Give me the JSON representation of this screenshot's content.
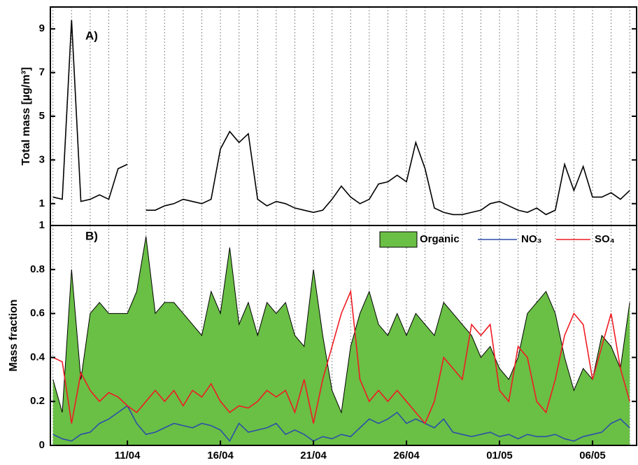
{
  "chart_data": [
    {
      "type": "line",
      "annotation": "A)",
      "ylabel": "Total mass [µg/m³]",
      "xlim": [
        6.86,
        38.37
      ],
      "ylim": [
        0,
        10
      ],
      "yticks": [
        1,
        3,
        5,
        7,
        9
      ],
      "xminor": [
        7,
        8,
        9,
        10,
        11,
        12,
        13,
        14,
        15,
        16,
        17,
        18,
        19,
        20,
        21,
        22,
        23,
        24,
        25,
        26,
        27,
        28,
        29,
        30,
        31,
        32,
        33,
        34,
        35,
        36,
        37,
        38
      ],
      "x": [
        7,
        7.5,
        8,
        8.5,
        9,
        9.5,
        10,
        10.5,
        11,
        11.5,
        12,
        12.5,
        13,
        13.5,
        14,
        14.5,
        15,
        15.5,
        16,
        16.5,
        17,
        17.5,
        18,
        18.5,
        19,
        19.5,
        20,
        20.5,
        21,
        21.5,
        22,
        22.5,
        23,
        23.5,
        24,
        24.5,
        25,
        25.5,
        26,
        26.5,
        27,
        27.5,
        28,
        28.5,
        29,
        29.5,
        30,
        30.5,
        31,
        31.5,
        32,
        32.5,
        33,
        33.5,
        34,
        34.5,
        35,
        35.5,
        36,
        36.5,
        37,
        37.5,
        38
      ],
      "series": [
        {
          "color": "#000000",
          "values": [
            1.3,
            1.2,
            9.4,
            1.1,
            1.2,
            1.4,
            1.2,
            2.6,
            2.8,
            null,
            0.7,
            0.7,
            0.9,
            1.0,
            1.2,
            1.1,
            1.0,
            1.2,
            3.5,
            4.3,
            3.8,
            4.2,
            1.2,
            0.9,
            1.1,
            1.0,
            0.8,
            0.7,
            0.6,
            0.7,
            1.2,
            1.8,
            1.3,
            1.0,
            1.2,
            1.9,
            2.0,
            2.3,
            2.0,
            3.8,
            2.6,
            0.8,
            0.6,
            0.5,
            0.5,
            0.6,
            0.7,
            1.0,
            1.1,
            0.9,
            0.7,
            0.6,
            0.8,
            0.5,
            0.7,
            2.8,
            1.6,
            2.7,
            1.3,
            1.3,
            1.5,
            1.2,
            1.6
          ]
        }
      ]
    },
    {
      "type": "line",
      "annotation": "B)",
      "ylabel": "Mass fraction",
      "xlim": [
        6.86,
        38.37
      ],
      "ylim": [
        0,
        1
      ],
      "yticks": [
        0,
        0.2,
        0.4,
        0.6,
        0.8,
        1
      ],
      "xminor": [
        7,
        8,
        9,
        10,
        11,
        12,
        13,
        14,
        15,
        16,
        17,
        18,
        19,
        20,
        21,
        22,
        23,
        24,
        25,
        26,
        27,
        28,
        29,
        30,
        31,
        32,
        33,
        34,
        35,
        36,
        37,
        38
      ],
      "xticks": [
        {
          "value": 11,
          "label": "11/04"
        },
        {
          "value": 16,
          "label": "16/04"
        },
        {
          "value": 21,
          "label": "21/04"
        },
        {
          "value": 26,
          "label": "26/04"
        },
        {
          "value": 31,
          "label": "01/05"
        },
        {
          "value": 36,
          "label": "06/05"
        }
      ],
      "x": [
        7,
        7.5,
        8,
        8.5,
        9,
        9.5,
        10,
        10.5,
        11,
        11.5,
        12,
        12.5,
        13,
        13.5,
        14,
        14.5,
        15,
        15.5,
        16,
        16.5,
        17,
        17.5,
        18,
        18.5,
        19,
        19.5,
        20,
        20.5,
        21,
        21.5,
        22,
        22.5,
        23,
        23.5,
        24,
        24.5,
        25,
        25.5,
        26,
        26.5,
        27,
        27.5,
        28,
        28.5,
        29,
        29.5,
        30,
        30.5,
        31,
        31.5,
        32,
        32.5,
        33,
        33.5,
        34,
        34.5,
        35,
        35.5,
        36,
        36.5,
        37,
        37.5,
        38
      ],
      "series": [
        {
          "name": "Organic",
          "color": "#6abf45",
          "style": "area",
          "values": [
            0.3,
            0.15,
            0.8,
            0.3,
            0.6,
            0.65,
            0.6,
            0.6,
            0.6,
            0.7,
            0.95,
            0.6,
            0.65,
            0.65,
            0.6,
            0.55,
            0.5,
            0.7,
            0.6,
            0.9,
            0.55,
            0.65,
            0.5,
            0.65,
            0.6,
            0.65,
            0.5,
            0.45,
            0.8,
            0.5,
            0.25,
            0.15,
            0.45,
            0.6,
            0.7,
            0.55,
            0.5,
            0.6,
            0.5,
            0.6,
            0.55,
            0.5,
            0.65,
            0.6,
            0.55,
            0.5,
            0.4,
            0.45,
            0.35,
            0.3,
            0.4,
            0.6,
            0.65,
            0.7,
            0.6,
            0.4,
            0.25,
            0.35,
            0.3,
            0.5,
            0.45,
            0.35,
            0.65
          ]
        },
        {
          "name": "NO₃",
          "color": "#2b4fa8",
          "style": "line",
          "values": [
            0.05,
            0.03,
            0.02,
            0.05,
            0.06,
            0.1,
            0.12,
            0.15,
            0.18,
            0.1,
            0.05,
            0.06,
            0.08,
            0.1,
            0.09,
            0.08,
            0.1,
            0.09,
            0.07,
            0.02,
            0.1,
            0.06,
            0.07,
            0.08,
            0.1,
            0.05,
            0.07,
            0.05,
            0.02,
            0.04,
            0.03,
            0.05,
            0.04,
            0.08,
            0.12,
            0.1,
            0.12,
            0.15,
            0.1,
            0.12,
            0.1,
            0.08,
            0.12,
            0.06,
            0.05,
            0.04,
            0.05,
            0.06,
            0.04,
            0.05,
            0.03,
            0.05,
            0.04,
            0.04,
            0.05,
            0.03,
            0.02,
            0.04,
            0.05,
            0.06,
            0.1,
            0.12,
            0.08
          ]
        },
        {
          "name": "SO₄",
          "color": "#ee1c24",
          "style": "line",
          "values": [
            0.4,
            0.38,
            0.1,
            0.33,
            0.25,
            0.2,
            0.24,
            0.22,
            0.18,
            0.15,
            0.2,
            0.25,
            0.2,
            0.25,
            0.18,
            0.25,
            0.22,
            0.28,
            0.2,
            0.15,
            0.18,
            0.17,
            0.2,
            0.25,
            0.22,
            0.25,
            0.15,
            0.3,
            0.1,
            0.3,
            0.45,
            0.6,
            0.7,
            0.3,
            0.2,
            0.25,
            0.2,
            0.25,
            0.2,
            0.15,
            0.1,
            0.2,
            0.4,
            0.35,
            0.3,
            0.55,
            0.5,
            0.55,
            0.25,
            0.2,
            0.45,
            0.4,
            0.2,
            0.15,
            0.3,
            0.5,
            0.6,
            0.55,
            0.3,
            0.45,
            0.6,
            0.35,
            0.2
          ]
        }
      ]
    }
  ]
}
